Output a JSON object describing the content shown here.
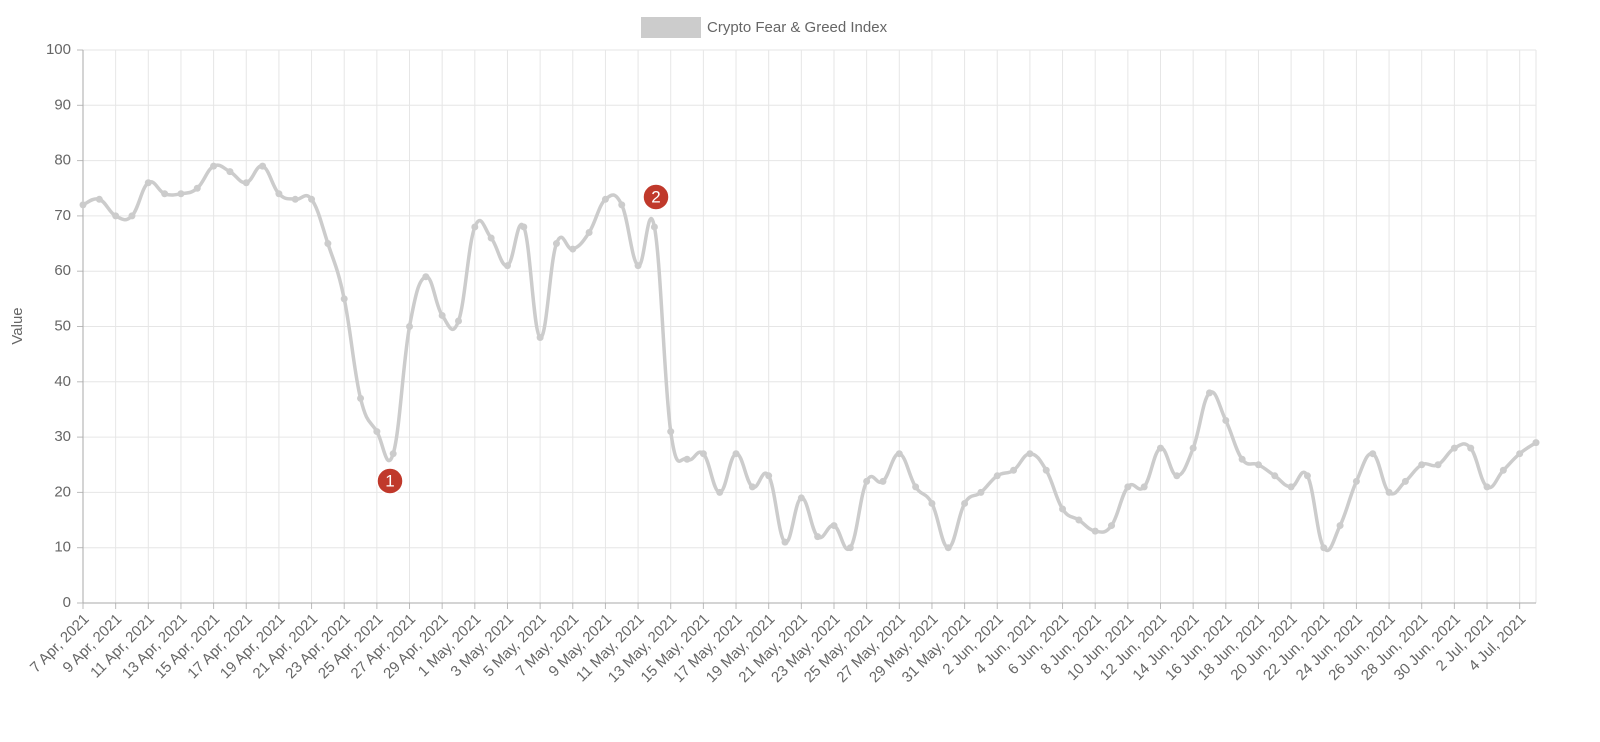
{
  "chart_data": {
    "type": "line",
    "legend": "Crypto Fear & Greed Index",
    "y_label": "Value",
    "categories": [
      "7 Apr, 2021",
      null,
      "9 Apr, 2021",
      null,
      "11 Apr, 2021",
      null,
      "13 Apr, 2021",
      null,
      "15 Apr, 2021",
      null,
      "17 Apr, 2021",
      null,
      "19 Apr, 2021",
      null,
      "21 Apr, 2021",
      null,
      "23 Apr, 2021",
      null,
      "25 Apr, 2021",
      null,
      "27 Apr, 2021",
      null,
      "29 Apr, 2021",
      null,
      "1 May, 2021",
      null,
      "3 May, 2021",
      null,
      "5 May, 2021",
      null,
      "7 May, 2021",
      null,
      "9 May, 2021",
      null,
      "11 May, 2021",
      null,
      "13 May, 2021",
      null,
      "15 May, 2021",
      null,
      "17 May, 2021",
      null,
      "19 May, 2021",
      null,
      "21 May, 2021",
      null,
      "23 May, 2021",
      null,
      "25 May, 2021",
      null,
      "27 May, 2021",
      null,
      "29 May, 2021",
      null,
      "31 May, 2021",
      null,
      "2 Jun, 2021",
      null,
      "4 Jun, 2021",
      null,
      "6 Jun, 2021",
      null,
      "8 Jun, 2021",
      null,
      "10 Jun, 2021",
      null,
      "12 Jun, 2021",
      null,
      "14 Jun, 2021",
      null,
      "16 Jun, 2021",
      null,
      "18 Jun, 2021",
      null,
      "20 Jun, 2021",
      null,
      "22 Jun, 2021",
      null,
      "24 Jun, 2021",
      null,
      "26 Jun, 2021",
      null,
      "28 Jun, 2021",
      null,
      "30 Jun, 2021",
      null,
      "2 Jul, 2021",
      null,
      "4 Jul, 2021",
      null
    ],
    "series": [
      {
        "name": "Crypto Fear & Greed Index",
        "color": "#cccccc",
        "values": [
          72,
          73,
          70,
          70,
          76,
          74,
          74,
          75,
          79,
          78,
          76,
          79,
          74,
          73,
          73,
          65,
          55,
          37,
          31,
          27,
          50,
          59,
          52,
          51,
          68,
          66,
          61,
          68,
          48,
          65,
          64,
          67,
          73,
          72,
          61,
          68,
          31,
          26,
          27,
          20,
          27,
          21,
          23,
          11,
          19,
          12,
          14,
          10,
          22,
          22,
          27,
          21,
          18,
          10,
          18,
          20,
          23,
          24,
          27,
          24,
          17,
          15,
          13,
          14,
          21,
          21,
          28,
          23,
          28,
          38,
          33,
          26,
          25,
          23,
          21,
          23,
          10,
          14,
          22,
          27,
          20,
          22,
          25,
          25,
          28,
          28,
          21,
          24,
          27,
          29
        ]
      }
    ],
    "ylim": [
      0,
      100
    ],
    "yticks": [
      0,
      10,
      20,
      30,
      40,
      50,
      60,
      70,
      80,
      90,
      100
    ],
    "grid": true,
    "annotations": [
      {
        "label": "1",
        "color": "#c0392b"
      },
      {
        "label": "2",
        "color": "#c0392b"
      }
    ]
  }
}
